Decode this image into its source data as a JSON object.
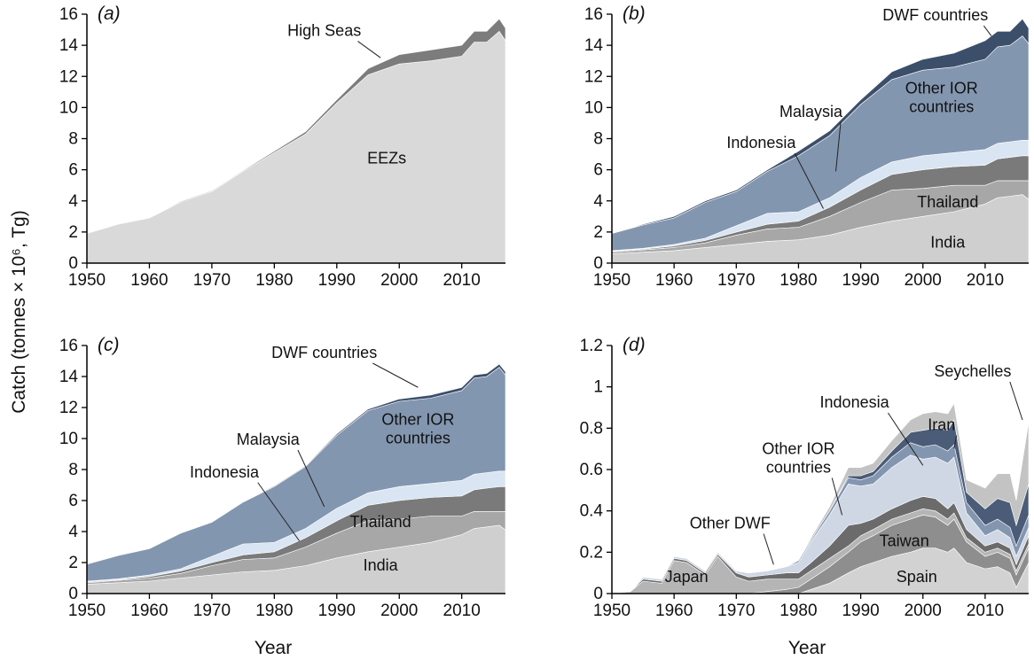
{
  "figure": {
    "ylabel": "Catch (tonnes × 10⁶, Tg)",
    "xlabel": "Year"
  },
  "colors": {
    "high_seas": "#7c7c7c",
    "eezs": "#d9d9d9",
    "india": "#cfcfcf",
    "thailand": "#a7a7a7",
    "indonesia": "#7a7a7a",
    "malaysia": "#d9e5f2",
    "other_ior": "#8396b0",
    "dwf": "#3c4f6a",
    "spain": "#d2d2d2",
    "taiwan": "#8e8e8e",
    "japan": "#b5b5b5",
    "other_dwf": "#6b6b6b",
    "other_ior_d": "#cfd7e4",
    "iran": "#4b5c78",
    "seychelles": "#c3c3c3",
    "axis": "#000000"
  },
  "chart_data": [
    {
      "id": "a",
      "label": "(a)",
      "type": "area",
      "stacked": true,
      "xlim": [
        1950,
        2017
      ],
      "ylim": [
        0,
        16
      ],
      "xticks": [
        1950,
        1960,
        1970,
        1980,
        1990,
        2000,
        2010
      ],
      "yticks": [
        0,
        2,
        4,
        6,
        8,
        10,
        12,
        14,
        16
      ],
      "x": [
        1950,
        1955,
        1960,
        1965,
        1970,
        1975,
        1980,
        1985,
        1990,
        1995,
        2000,
        2005,
        2010,
        2012,
        2014,
        2016,
        2017
      ],
      "series": [
        {
          "name": "EEZs",
          "color_key": "eezs",
          "values": [
            1.9,
            2.5,
            2.9,
            3.9,
            4.6,
            5.9,
            7.1,
            8.3,
            10.3,
            12.1,
            12.8,
            13.0,
            13.3,
            14.2,
            14.2,
            14.9,
            14.3
          ]
        },
        {
          "name": "High Seas",
          "color_key": "high_seas",
          "values": [
            0.0,
            0.0,
            0.02,
            0.05,
            0.05,
            0.05,
            0.1,
            0.15,
            0.2,
            0.4,
            0.6,
            0.7,
            0.7,
            0.7,
            0.7,
            0.8,
            0.8
          ]
        }
      ],
      "annotations": [
        {
          "text": "High Seas",
          "x": 1988,
          "y": 14.6,
          "anchor": "middle",
          "line_to": [
            1997,
            13.2
          ]
        },
        {
          "text": "EEZs",
          "x": 1998,
          "y": 6.4,
          "anchor": "middle"
        }
      ]
    },
    {
      "id": "b",
      "label": "(b)",
      "type": "area",
      "stacked": true,
      "xlim": [
        1950,
        2017
      ],
      "ylim": [
        0,
        16
      ],
      "xticks": [
        1950,
        1960,
        1970,
        1980,
        1990,
        2000,
        2010
      ],
      "yticks": [
        0,
        2,
        4,
        6,
        8,
        10,
        12,
        14,
        16
      ],
      "x": [
        1950,
        1955,
        1960,
        1965,
        1970,
        1975,
        1980,
        1985,
        1990,
        1995,
        2000,
        2005,
        2010,
        2012,
        2014,
        2016,
        2017
      ],
      "series": [
        {
          "name": "India",
          "color_key": "india",
          "values": [
            0.6,
            0.7,
            0.8,
            1.0,
            1.2,
            1.4,
            1.5,
            1.8,
            2.3,
            2.7,
            3.0,
            3.3,
            3.8,
            4.2,
            4.3,
            4.4,
            4.1
          ]
        },
        {
          "name": "Thailand",
          "color_key": "thailand",
          "values": [
            0.1,
            0.15,
            0.2,
            0.3,
            0.6,
            0.8,
            0.8,
            1.2,
            1.6,
            2.0,
            1.8,
            1.7,
            1.2,
            1.1,
            1.0,
            0.9,
            1.2
          ]
        },
        {
          "name": "Indonesia",
          "color_key": "indonesia",
          "values": [
            0.05,
            0.05,
            0.1,
            0.15,
            0.2,
            0.3,
            0.4,
            0.6,
            0.8,
            1.0,
            1.2,
            1.2,
            1.3,
            1.4,
            1.5,
            1.6,
            1.6
          ]
        },
        {
          "name": "Malaysia",
          "color_key": "malaysia",
          "values": [
            0.05,
            0.05,
            0.1,
            0.15,
            0.4,
            0.7,
            0.6,
            0.6,
            0.8,
            0.8,
            0.9,
            0.9,
            1.0,
            1.0,
            1.0,
            1.0,
            1.0
          ]
        },
        {
          "name": "Other IOR countries",
          "color_key": "other_ior",
          "values": [
            1.1,
            1.5,
            1.7,
            2.3,
            2.2,
            2.7,
            3.6,
            4.0,
            4.7,
            5.3,
            5.5,
            5.5,
            5.8,
            6.2,
            6.2,
            6.7,
            6.2
          ]
        },
        {
          "name": "DWF countries",
          "color_key": "dwf",
          "values": [
            0.0,
            0.05,
            0.1,
            0.1,
            0.1,
            0.1,
            0.3,
            0.3,
            0.3,
            0.5,
            0.7,
            0.9,
            1.2,
            1.0,
            0.9,
            1.1,
            1.0
          ]
        }
      ],
      "annotations": [
        {
          "text": "DWF countries",
          "x": 2002,
          "y": 15.6,
          "anchor": "middle",
          "line_to": [
            2011,
            14.6
          ]
        },
        {
          "text": "Other IOR",
          "x": 2003,
          "y": 10.9,
          "anchor": "middle"
        },
        {
          "text": "countries",
          "x": 2003,
          "y": 9.7,
          "anchor": "middle"
        },
        {
          "text": "Malaysia",
          "x": 1982,
          "y": 9.4,
          "anchor": "middle",
          "line_to": [
            1986,
            5.9
          ]
        },
        {
          "text": "Indonesia",
          "x": 1974,
          "y": 7.4,
          "anchor": "middle",
          "line_to": [
            1984,
            3.5
          ]
        },
        {
          "text": "Thailand",
          "x": 2004,
          "y": 3.6,
          "anchor": "middle"
        },
        {
          "text": "India",
          "x": 2004,
          "y": 1.0,
          "anchor": "middle"
        }
      ]
    },
    {
      "id": "c",
      "label": "(c)",
      "type": "area",
      "stacked": true,
      "xlim": [
        1950,
        2017
      ],
      "ylim": [
        0,
        16
      ],
      "xticks": [
        1950,
        1960,
        1970,
        1980,
        1990,
        2000,
        2010
      ],
      "yticks": [
        0,
        2,
        4,
        6,
        8,
        10,
        12,
        14,
        16
      ],
      "x": [
        1950,
        1955,
        1960,
        1965,
        1970,
        1975,
        1980,
        1985,
        1990,
        1995,
        2000,
        2005,
        2010,
        2012,
        2014,
        2016,
        2017
      ],
      "series": [
        {
          "name": "India",
          "color_key": "india",
          "values": [
            0.6,
            0.7,
            0.8,
            1.0,
            1.2,
            1.4,
            1.5,
            1.8,
            2.3,
            2.7,
            3.0,
            3.3,
            3.8,
            4.2,
            4.3,
            4.4,
            4.1
          ]
        },
        {
          "name": "Thailand",
          "color_key": "thailand",
          "values": [
            0.1,
            0.15,
            0.2,
            0.3,
            0.6,
            0.8,
            0.8,
            1.2,
            1.6,
            2.0,
            1.8,
            1.7,
            1.2,
            1.1,
            1.0,
            0.9,
            1.2
          ]
        },
        {
          "name": "Indonesia",
          "color_key": "indonesia",
          "values": [
            0.05,
            0.05,
            0.1,
            0.15,
            0.2,
            0.3,
            0.4,
            0.6,
            0.8,
            1.0,
            1.2,
            1.2,
            1.3,
            1.4,
            1.5,
            1.6,
            1.6
          ]
        },
        {
          "name": "Malaysia",
          "color_key": "malaysia",
          "values": [
            0.05,
            0.05,
            0.1,
            0.15,
            0.4,
            0.7,
            0.6,
            0.6,
            0.8,
            0.8,
            0.9,
            0.9,
            1.0,
            1.0,
            1.0,
            1.0,
            1.0
          ]
        },
        {
          "name": "Other IOR countries",
          "color_key": "other_ior",
          "values": [
            1.1,
            1.5,
            1.7,
            2.3,
            2.2,
            2.7,
            3.6,
            4.0,
            4.7,
            5.3,
            5.5,
            5.5,
            5.8,
            6.2,
            6.2,
            6.7,
            6.2
          ]
        },
        {
          "name": "DWF countries",
          "color_key": "dwf",
          "values": [
            0.0,
            0.02,
            0.03,
            0.03,
            0.03,
            0.03,
            0.05,
            0.05,
            0.1,
            0.1,
            0.15,
            0.2,
            0.2,
            0.2,
            0.2,
            0.2,
            0.2
          ]
        }
      ],
      "annotations": [
        {
          "text": "DWF countries",
          "x": 1988,
          "y": 15.2,
          "anchor": "middle",
          "line_to": [
            2003,
            13.3
          ]
        },
        {
          "text": "Other IOR",
          "x": 2003,
          "y": 10.9,
          "anchor": "middle"
        },
        {
          "text": "countries",
          "x": 2003,
          "y": 9.7,
          "anchor": "middle"
        },
        {
          "text": "Malaysia",
          "x": 1979,
          "y": 9.6,
          "anchor": "middle",
          "line_to": [
            1988,
            5.6
          ]
        },
        {
          "text": "Indonesia",
          "x": 1972,
          "y": 7.5,
          "anchor": "middle",
          "line_to": [
            1984,
            3.4
          ]
        },
        {
          "text": "Thailand",
          "x": 1997,
          "y": 4.3,
          "anchor": "middle"
        },
        {
          "text": "India",
          "x": 1997,
          "y": 1.5,
          "anchor": "middle"
        }
      ]
    },
    {
      "id": "d",
      "label": "(d)",
      "type": "area",
      "stacked": true,
      "xlim": [
        1950,
        2017
      ],
      "ylim": [
        0,
        1.2
      ],
      "xticks": [
        1950,
        1960,
        1970,
        1980,
        1990,
        2000,
        2010
      ],
      "yticks": [
        0,
        0.2,
        0.4,
        0.6,
        0.8,
        1,
        1.2
      ],
      "ytick_labels": [
        "0",
        "0.2",
        "0.4",
        "0.6",
        "0.8",
        "1",
        "1.2"
      ],
      "x": [
        1950,
        1953,
        1955,
        1958,
        1960,
        1962,
        1965,
        1967,
        1970,
        1972,
        1975,
        1978,
        1980,
        1982,
        1985,
        1988,
        1990,
        1992,
        1995,
        1998,
        2000,
        2002,
        2004,
        2005,
        2007,
        2010,
        2012,
        2014,
        2015,
        2017
      ],
      "series": [
        {
          "name": "Spain",
          "color_key": "spain",
          "values": [
            0,
            0,
            0,
            0,
            0,
            0,
            0,
            0,
            0,
            0,
            0,
            0,
            0,
            0.02,
            0.05,
            0.1,
            0.13,
            0.15,
            0.18,
            0.2,
            0.22,
            0.22,
            0.2,
            0.22,
            0.15,
            0.12,
            0.13,
            0.1,
            0.03,
            0.15
          ]
        },
        {
          "name": "Taiwan",
          "color_key": "taiwan",
          "values": [
            0,
            0,
            0,
            0,
            0,
            0,
            0,
            0,
            0,
            0,
            0.01,
            0.02,
            0.03,
            0.05,
            0.08,
            0.1,
            0.12,
            0.13,
            0.15,
            0.16,
            0.16,
            0.15,
            0.13,
            0.14,
            0.1,
            0.06,
            0.07,
            0.07,
            0.06,
            0.07
          ]
        },
        {
          "name": "Japan",
          "color_key": "japan",
          "values": [
            0,
            0.01,
            0.06,
            0.05,
            0.16,
            0.15,
            0.09,
            0.18,
            0.08,
            0.06,
            0.06,
            0.05,
            0.04,
            0.04,
            0.04,
            0.03,
            0.03,
            0.03,
            0.03,
            0.03,
            0.03,
            0.03,
            0.03,
            0.03,
            0.02,
            0.02,
            0.02,
            0.02,
            0.02,
            0.02
          ]
        },
        {
          "name": "Other DWF",
          "color_key": "other_dwf",
          "values": [
            0,
            0,
            0.01,
            0.01,
            0.01,
            0.01,
            0.01,
            0.01,
            0.02,
            0.02,
            0.02,
            0.03,
            0.03,
            0.04,
            0.06,
            0.1,
            0.06,
            0.05,
            0.05,
            0.06,
            0.06,
            0.06,
            0.05,
            0.05,
            0.04,
            0.03,
            0.03,
            0.03,
            0.03,
            0.04
          ]
        },
        {
          "name": "Other IOR countries",
          "color_key": "other_ior_d",
          "values": [
            0,
            0,
            0.01,
            0.01,
            0.01,
            0.01,
            0.01,
            0.01,
            0.01,
            0.02,
            0.02,
            0.03,
            0.05,
            0.1,
            0.15,
            0.2,
            0.18,
            0.17,
            0.2,
            0.22,
            0.18,
            0.2,
            0.22,
            0.22,
            0.08,
            0.05,
            0.06,
            0.05,
            0.04,
            0.04
          ]
        },
        {
          "name": "Indonesia",
          "color_key": "other_ior",
          "values": [
            0,
            0,
            0,
            0,
            0,
            0,
            0,
            0,
            0,
            0,
            0,
            0,
            0.01,
            0.01,
            0.02,
            0.03,
            0.03,
            0.04,
            0.05,
            0.06,
            0.06,
            0.06,
            0.06,
            0.06,
            0.05,
            0.05,
            0.05,
            0.05,
            0.05,
            0.06
          ]
        },
        {
          "name": "Iran",
          "color_key": "iran",
          "values": [
            0,
            0,
            0,
            0,
            0,
            0,
            0,
            0,
            0,
            0,
            0,
            0,
            0,
            0,
            0,
            0.01,
            0.02,
            0.02,
            0.03,
            0.05,
            0.08,
            0.08,
            0.1,
            0.12,
            0.05,
            0.08,
            0.1,
            0.12,
            0.1,
            0.15
          ]
        },
        {
          "name": "Seychelles",
          "color_key": "seychelles",
          "values": [
            0,
            0,
            0,
            0,
            0,
            0,
            0,
            0,
            0,
            0,
            0,
            0,
            0,
            0.01,
            0.02,
            0.04,
            0.04,
            0.04,
            0.05,
            0.06,
            0.08,
            0.08,
            0.08,
            0.08,
            0.06,
            0.1,
            0.12,
            0.14,
            0.12,
            0.3
          ]
        }
      ],
      "annotations": [
        {
          "text": "Seychelles",
          "x": 2008,
          "y": 1.05,
          "anchor": "middle",
          "line_to": [
            2016,
            0.84
          ]
        },
        {
          "text": "Indonesia",
          "x": 1989,
          "y": 0.9,
          "anchor": "middle",
          "line_to": [
            2000,
            0.62
          ]
        },
        {
          "text": "Iran",
          "x": 2003,
          "y": 0.79,
          "anchor": "middle",
          "line_to": [
            2005,
            0.7
          ]
        },
        {
          "text": "Other IOR",
          "x": 1980,
          "y": 0.675,
          "anchor": "middle"
        },
        {
          "text": "countries",
          "x": 1980,
          "y": 0.585,
          "anchor": "middle",
          "line_to": [
            1987,
            0.38
          ]
        },
        {
          "text": "Other DWF",
          "x": 1969,
          "y": 0.315,
          "anchor": "middle",
          "line_to": [
            1976,
            0.14
          ]
        },
        {
          "text": "Japan",
          "x": 1962,
          "y": 0.055,
          "anchor": "middle"
        },
        {
          "text": "Taiwan",
          "x": 1997,
          "y": 0.23,
          "anchor": "middle"
        },
        {
          "text": "Spain",
          "x": 1999,
          "y": 0.055,
          "anchor": "middle"
        }
      ]
    }
  ]
}
